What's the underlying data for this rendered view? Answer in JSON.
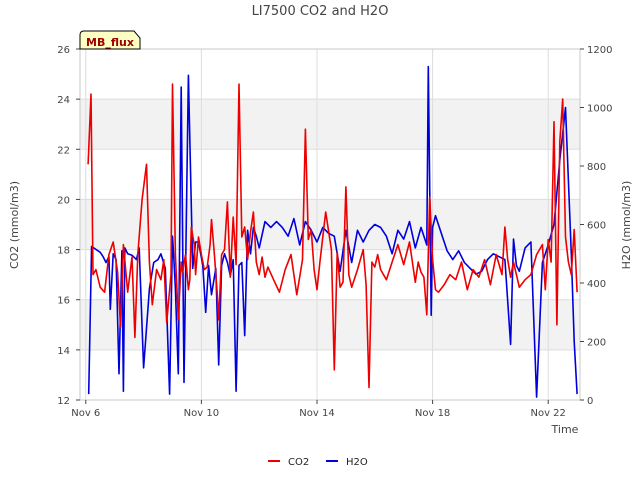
{
  "chart_data": {
    "type": "line",
    "title": "LI7500 CO2 and H2O",
    "badge": "MB_flux",
    "xlabel": "Time",
    "ylabel_left": "CO2 (mmol/m3)",
    "ylabel_right": "H2O (mmol/m3)",
    "x_unit": "days since Nov 6 00:00",
    "xlim": [
      -0.2,
      17.1
    ],
    "ylim_left": [
      12,
      26
    ],
    "ylim_right": [
      0,
      1200
    ],
    "x_ticks": [
      {
        "value": 0,
        "label": "Nov 6"
      },
      {
        "value": 4,
        "label": "Nov 10"
      },
      {
        "value": 8,
        "label": "Nov 14"
      },
      {
        "value": 12,
        "label": "Nov 18"
      },
      {
        "value": 16,
        "label": "Nov 22"
      }
    ],
    "y_ticks_left": [
      {
        "value": 12,
        "label": "12"
      },
      {
        "value": 14,
        "label": "14"
      },
      {
        "value": 16,
        "label": "16"
      },
      {
        "value": 18,
        "label": "18"
      },
      {
        "value": 20,
        "label": "20"
      },
      {
        "value": 22,
        "label": "22"
      },
      {
        "value": 24,
        "label": "24"
      },
      {
        "value": 26,
        "label": "26"
      }
    ],
    "y_ticks_right": [
      {
        "value": 0,
        "label": "0"
      },
      {
        "value": 200,
        "label": "200"
      },
      {
        "value": 400,
        "label": "400"
      },
      {
        "value": 600,
        "label": "600"
      },
      {
        "value": 800,
        "label": "800"
      },
      {
        "value": 1000,
        "label": "1000"
      },
      {
        "value": 1200,
        "label": "1200"
      }
    ],
    "bands": [
      [
        14,
        16
      ],
      [
        18,
        20
      ],
      [
        22,
        24
      ]
    ],
    "series": [
      {
        "name": "CO2",
        "axis": "left",
        "color": "#ee0000",
        "x": [
          0.08,
          0.18,
          0.25,
          0.35,
          0.5,
          0.65,
          0.8,
          0.95,
          1.1,
          1.2,
          1.3,
          1.45,
          1.6,
          1.7,
          1.8,
          1.95,
          2.1,
          2.2,
          2.3,
          2.45,
          2.6,
          2.7,
          2.8,
          2.95,
          3.0,
          3.1,
          3.2,
          3.3,
          3.35,
          3.45,
          3.55,
          3.6,
          3.65,
          3.75,
          3.8,
          3.9,
          4.0,
          4.1,
          4.2,
          4.3,
          4.35,
          4.45,
          4.55,
          4.6,
          4.7,
          4.8,
          4.9,
          5.0,
          5.1,
          5.2,
          5.3,
          5.4,
          5.5,
          5.6,
          5.7,
          5.8,
          5.9,
          6.0,
          6.1,
          6.2,
          6.3,
          6.5,
          6.7,
          6.9,
          7.1,
          7.3,
          7.5,
          7.6,
          7.7,
          7.8,
          7.9,
          8.0,
          8.1,
          8.2,
          8.3,
          8.5,
          8.6,
          8.7,
          8.8,
          8.9,
          9.0,
          9.1,
          9.2,
          9.4,
          9.6,
          9.7,
          9.8,
          9.9,
          10.0,
          10.1,
          10.2,
          10.4,
          10.6,
          10.8,
          11.0,
          11.2,
          11.4,
          11.5,
          11.6,
          11.7,
          11.8,
          11.9,
          12.0,
          12.1,
          12.2,
          12.4,
          12.6,
          12.8,
          13.0,
          13.2,
          13.4,
          13.6,
          13.8,
          14.0,
          14.2,
          14.4,
          14.5,
          14.6,
          14.7,
          14.8,
          15.0,
          15.2,
          15.4,
          15.6,
          15.8,
          15.9,
          16.0,
          16.1,
          16.2,
          16.3,
          16.4,
          16.5,
          16.6,
          16.7,
          16.8,
          16.9,
          17.0
        ],
        "y": [
          21.4,
          24.2,
          17.0,
          17.2,
          16.5,
          16.3,
          17.8,
          18.3,
          17.1,
          14.9,
          18.2,
          16.3,
          17.7,
          14.5,
          17.8,
          20.0,
          21.4,
          17.5,
          15.8,
          17.2,
          16.8,
          17.6,
          15.1,
          17.0,
          24.6,
          17.8,
          15.2,
          17.5,
          17.1,
          17.8,
          16.4,
          16.8,
          18.9,
          18.2,
          17.0,
          18.5,
          17.8,
          17.2,
          17.3,
          18.2,
          19.2,
          17.8,
          16.2,
          15.2,
          17.8,
          18.0,
          19.9,
          16.9,
          19.3,
          17.4,
          24.6,
          18.5,
          18.9,
          17.6,
          18.7,
          19.5,
          17.5,
          17.0,
          17.7,
          16.9,
          17.3,
          16.8,
          16.3,
          17.2,
          17.8,
          16.2,
          17.6,
          22.8,
          18.4,
          18.8,
          17.2,
          16.4,
          17.5,
          18.5,
          19.5,
          18.0,
          13.2,
          17.9,
          16.5,
          16.7,
          20.5,
          17.0,
          16.5,
          17.2,
          18.0,
          16.6,
          12.5,
          17.5,
          17.3,
          17.8,
          17.2,
          16.8,
          17.5,
          18.2,
          17.4,
          18.3,
          16.7,
          17.5,
          17.1,
          16.9,
          15.4,
          20.1,
          17.6,
          16.4,
          16.3,
          16.6,
          17.0,
          16.8,
          17.5,
          16.4,
          17.2,
          16.9,
          17.6,
          16.6,
          17.8,
          17.0,
          18.9,
          17.6,
          16.9,
          17.5,
          16.5,
          16.8,
          17.0,
          17.8,
          18.2,
          16.4,
          18.4,
          17.5,
          23.1,
          15.0,
          22.3,
          24.0,
          18.5,
          17.5,
          17.0,
          18.8,
          16.3
        ]
      },
      {
        "name": "H2O",
        "axis": "right",
        "color": "#0000dd",
        "x": [
          0.1,
          0.2,
          0.35,
          0.5,
          0.6,
          0.7,
          0.8,
          0.85,
          0.95,
          1.05,
          1.15,
          1.25,
          1.3,
          1.35,
          1.45,
          1.6,
          1.75,
          1.85,
          2.0,
          2.2,
          2.35,
          2.5,
          2.6,
          2.75,
          2.9,
          3.0,
          3.05,
          3.1,
          3.2,
          3.3,
          3.4,
          3.55,
          3.7,
          3.8,
          3.9,
          4.05,
          4.15,
          4.25,
          4.35,
          4.5,
          4.6,
          4.7,
          4.8,
          4.9,
          5.0,
          5.1,
          5.2,
          5.3,
          5.4,
          5.5,
          5.6,
          5.7,
          5.8,
          5.9,
          6.0,
          6.2,
          6.4,
          6.6,
          6.8,
          7.0,
          7.2,
          7.4,
          7.6,
          7.8,
          8.0,
          8.2,
          8.4,
          8.6,
          8.8,
          9.0,
          9.2,
          9.4,
          9.6,
          9.8,
          10.0,
          10.2,
          10.4,
          10.6,
          10.8,
          11.0,
          11.2,
          11.4,
          11.6,
          11.8,
          11.85,
          11.95,
          12.0,
          12.1,
          12.3,
          12.5,
          12.7,
          12.9,
          13.1,
          13.3,
          13.5,
          13.7,
          13.9,
          14.1,
          14.3,
          14.5,
          14.7,
          14.8,
          14.9,
          15.0,
          15.2,
          15.4,
          15.6,
          15.8,
          16.0,
          16.2,
          16.4,
          16.6,
          16.8,
          16.9,
          17.0
        ],
        "y": [
          20,
          525,
          515,
          505,
          490,
          470,
          490,
          310,
          500,
          480,
          90,
          510,
          30,
          520,
          500,
          495,
          480,
          520,
          110,
          380,
          470,
          480,
          500,
          450,
          20,
          560,
          480,
          380,
          90,
          1070,
          60,
          1110,
          450,
          540,
          540,
          460,
          300,
          460,
          360,
          450,
          120,
          460,
          500,
          470,
          425,
          480,
          30,
          460,
          470,
          220,
          580,
          500,
          590,
          560,
          520,
          610,
          590,
          610,
          590,
          560,
          620,
          530,
          610,
          580,
          540,
          590,
          570,
          560,
          440,
          580,
          470,
          580,
          540,
          580,
          600,
          590,
          560,
          500,
          580,
          550,
          610,
          520,
          590,
          530,
          1140,
          290,
          590,
          630,
          570,
          510,
          480,
          510,
          470,
          450,
          430,
          440,
          480,
          500,
          490,
          480,
          190,
          550,
          460,
          440,
          520,
          540,
          10,
          470,
          530,
          600,
          820,
          1000,
          500,
          200,
          20
        ]
      }
    ]
  }
}
